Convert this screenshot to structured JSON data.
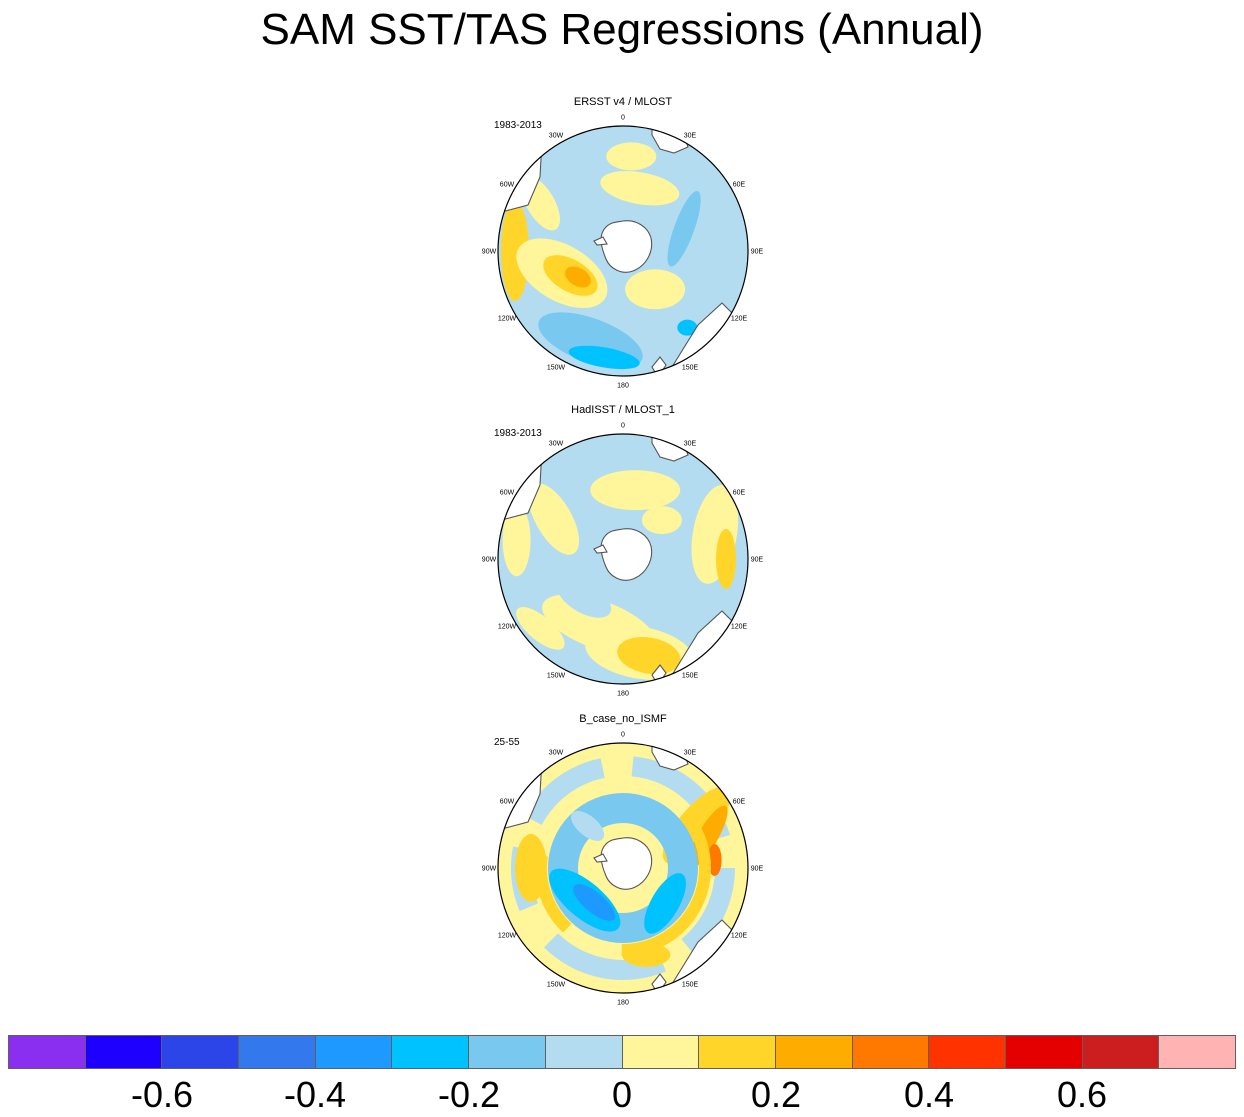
{
  "title": "SAM SST/TAS Regressions (Annual)",
  "panels": [
    {
      "title": "ERSST v4 / MLOST",
      "period": "1983-2013",
      "pattern": "ersst"
    },
    {
      "title": "HadISST / MLOST_1",
      "period": "1983-2013",
      "pattern": "hadisst"
    },
    {
      "title": "B_case_no_ISMF",
      "period": "25-55",
      "pattern": "bcase"
    }
  ],
  "longitude_labels": [
    "0",
    "30E",
    "60E",
    "90E",
    "120E",
    "150E",
    "180",
    "150W",
    "120W",
    "90W",
    "60W",
    "30W"
  ],
  "colorbar": {
    "colors": [
      "#8a2ff0",
      "#1e00ff",
      "#2b45e8",
      "#3378ec",
      "#1e99ff",
      "#00c2ff",
      "#78c8f0",
      "#b3dcf0",
      "#fff59a",
      "#ffd52a",
      "#ffac00",
      "#ff7800",
      "#ff3200",
      "#e50000",
      "#cc1e1e",
      "#ffb3b3"
    ],
    "tick_labels": [
      "-0.6",
      "-0.4",
      "-0.2",
      "0",
      "0.2",
      "0.4",
      "0.6"
    ],
    "tick_values": [
      -0.6,
      -0.4,
      -0.2,
      0,
      0.2,
      0.4,
      0.6
    ]
  },
  "colors": {
    "land": "#ffffff",
    "coast": "#555555",
    "border": "#000000"
  }
}
